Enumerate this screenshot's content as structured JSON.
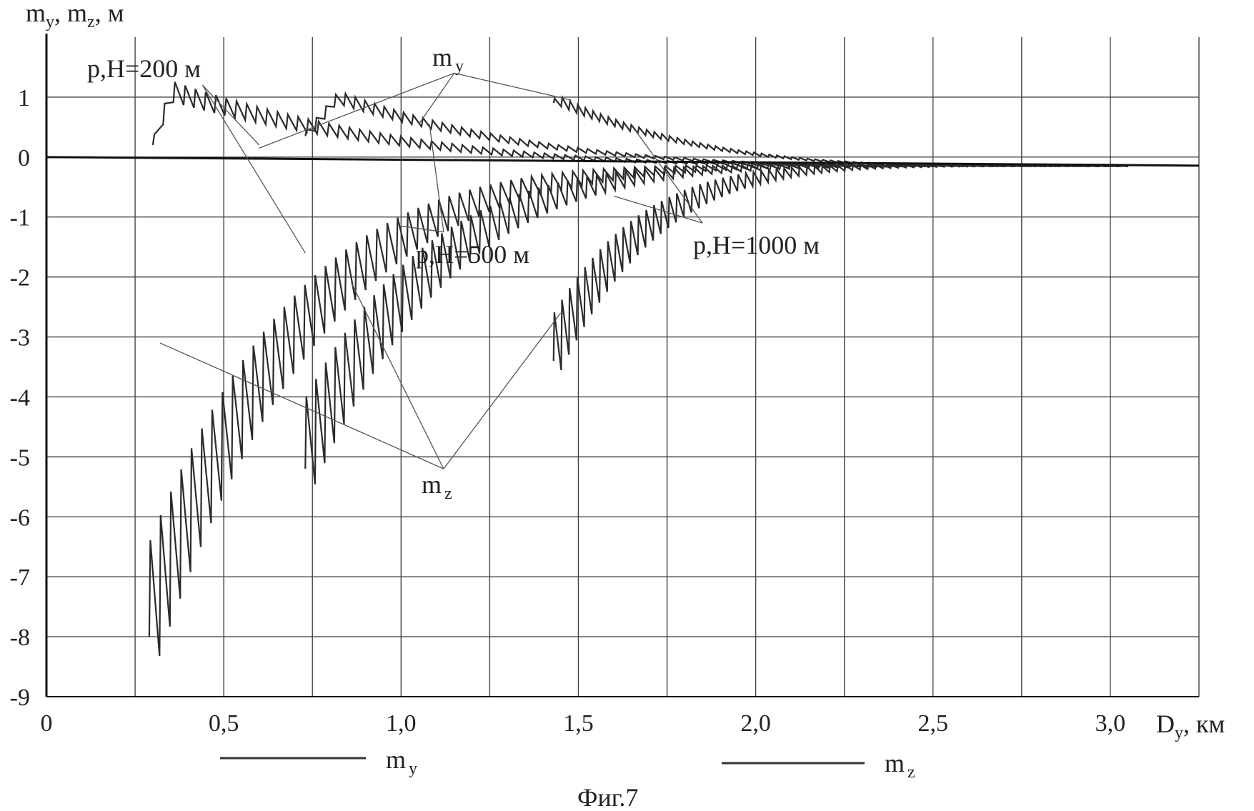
{
  "chart_data": {
    "type": "line",
    "ylabel": "mᵧ, mz, м",
    "ylabel_parts": {
      "m1": "m",
      "s1": "y",
      "sep1": ", m",
      "s2": "z",
      "unit": ", м"
    },
    "xlabel_parts": {
      "d": "D",
      "s": "y",
      "unit": ", км"
    },
    "caption": "Фиг.7",
    "xlim": [
      0,
      3.25
    ],
    "ylim": [
      -9,
      2
    ],
    "grid": true,
    "x_ticks": [
      0,
      0.25,
      0.5,
      0.75,
      1.0,
      1.25,
      1.5,
      1.75,
      2.0,
      2.25,
      2.5,
      2.75,
      3.0,
      3.25
    ],
    "x_tick_labels": [
      {
        "x": 0,
        "text": "0"
      },
      {
        "x": 0.5,
        "text": "0,5"
      },
      {
        "x": 1.0,
        "text": "1,0"
      },
      {
        "x": 1.5,
        "text": "1,5"
      },
      {
        "x": 2.0,
        "text": "2,0"
      },
      {
        "x": 2.5,
        "text": "2,5"
      },
      {
        "x": 3.0,
        "text": "3,0"
      }
    ],
    "y_ticks": [
      1,
      0,
      -1,
      -2,
      -3,
      -4,
      -5,
      -6,
      -7,
      -8,
      -9
    ],
    "y_tick_labels": [
      "1",
      "0",
      "-1",
      "-2",
      "-3",
      "-4",
      "-5",
      "-6",
      "-7",
      "-8",
      "-9"
    ],
    "series": [
      {
        "name": "mᵧ",
        "group": "p,H=200 м",
        "x_start": 0.3,
        "x_end": 3.05,
        "peak": [
          0.35,
          1.1
        ],
        "start": [
          0.3,
          0.2
        ],
        "end": [
          3.05,
          -0.15
        ],
        "teeth": 95,
        "tooth_amplitude": 0.35
      },
      {
        "name": "mᵧ",
        "group": "p,H=500 м",
        "x_start": 0.73,
        "x_end": 3.05,
        "peak": [
          0.82,
          1.0
        ],
        "start": [
          0.73,
          0.35
        ],
        "end": [
          3.05,
          -0.15
        ],
        "teeth": 85,
        "tooth_amplitude": 0.22
      },
      {
        "name": "mᵧ",
        "group": "p,H=1000 м",
        "x_start": 1.43,
        "x_end": 3.05,
        "peak": [
          1.44,
          0.95
        ],
        "start": [
          1.43,
          0.9
        ],
        "end": [
          3.05,
          -0.15
        ],
        "teeth": 75,
        "tooth_amplitude": 0.15
      },
      {
        "name": "mz",
        "group": "p,H=200 м",
        "x_start": 0.29,
        "x_end": 3.05,
        "min": [
          0.29,
          -8.0
        ],
        "end": [
          3.05,
          -0.15
        ],
        "teeth": 95,
        "tooth_amplitude": 1.6
      },
      {
        "name": "mz",
        "group": "p,H=500 м",
        "x_start": 0.73,
        "x_end": 3.05,
        "min": [
          0.73,
          -5.2
        ],
        "end": [
          3.05,
          -0.15
        ],
        "teeth": 85,
        "tooth_amplitude": 1.2
      },
      {
        "name": "mz",
        "group": "p,H=1000 м",
        "x_start": 1.43,
        "x_end": 3.05,
        "min": [
          1.43,
          -3.4
        ],
        "end": [
          3.05,
          -0.15
        ],
        "teeth": 75,
        "tooth_amplitude": 0.8
      }
    ],
    "annotations": {
      "h200": "p,H=200 м",
      "h500": "p,H=500 м",
      "h1000": "p,H=1000 м",
      "my_m": "m",
      "my_sub": "y",
      "mz_m": "m",
      "mz_sub": "z"
    },
    "legend": {
      "placement": "bottom",
      "items": [
        {
          "m": "m",
          "sub": "y",
          "style": "solid",
          "color": "#333333"
        },
        {
          "m": "m",
          "sub": "z",
          "style": "solid",
          "color": "#333333"
        }
      ]
    },
    "colors": {
      "line": "#2b2b2b",
      "grid": "#444444",
      "leader": "#555555"
    }
  }
}
